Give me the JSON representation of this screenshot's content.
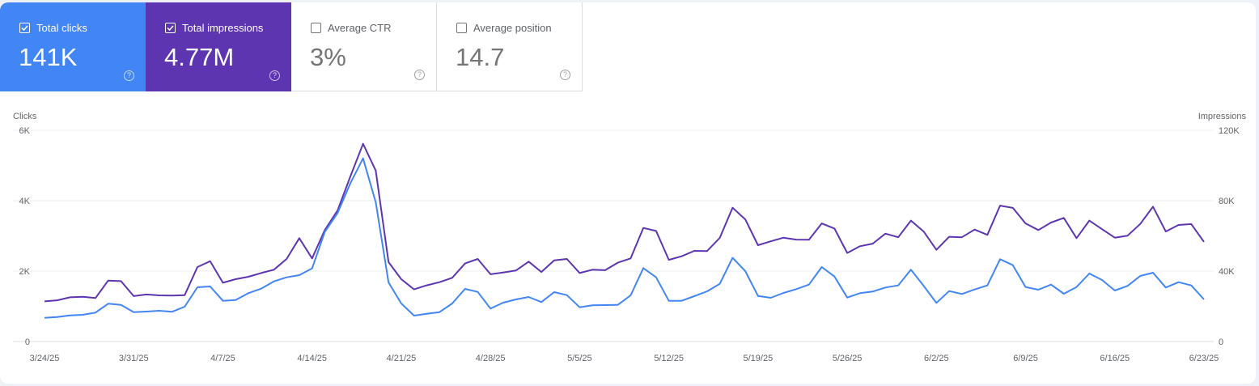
{
  "metrics": [
    {
      "label": "Total clicks",
      "value": "141K",
      "checked": true,
      "color": "#4285f4"
    },
    {
      "label": "Total impressions",
      "value": "4.77M",
      "checked": true,
      "color": "#5e35b1"
    },
    {
      "label": "Average CTR",
      "value": "3%",
      "checked": false
    },
    {
      "label": "Average position",
      "value": "14.7",
      "checked": false
    }
  ],
  "help_glyph": "?",
  "chart_data": {
    "type": "line",
    "grid": true,
    "left_axis": {
      "label": "Clicks",
      "ticks": [
        "0",
        "2K",
        "4K",
        "6K"
      ],
      "range": [
        0,
        6000
      ]
    },
    "right_axis": {
      "label": "Impressions",
      "ticks": [
        "0",
        "40K",
        "80K",
        "120K"
      ],
      "range": [
        0,
        120000
      ]
    },
    "x_tick_labels": [
      "3/24/25",
      "3/31/25",
      "4/7/25",
      "4/14/25",
      "4/21/25",
      "4/28/25",
      "5/5/25",
      "5/12/25",
      "5/19/25",
      "5/26/25",
      "6/2/25",
      "6/9/25",
      "6/16/25",
      "6/23/25"
    ],
    "x": [
      "3/24/25",
      "3/25/25",
      "3/26/25",
      "3/27/25",
      "3/28/25",
      "3/29/25",
      "3/30/25",
      "3/31/25",
      "4/1/25",
      "4/2/25",
      "4/3/25",
      "4/4/25",
      "4/5/25",
      "4/6/25",
      "4/7/25",
      "4/8/25",
      "4/9/25",
      "4/10/25",
      "4/11/25",
      "4/12/25",
      "4/13/25",
      "4/14/25",
      "4/15/25",
      "4/16/25",
      "4/17/25",
      "4/18/25",
      "4/19/25",
      "4/20/25",
      "4/21/25",
      "4/22/25",
      "4/23/25",
      "4/24/25",
      "4/25/25",
      "4/26/25",
      "4/27/25",
      "4/28/25",
      "4/29/25",
      "4/30/25",
      "5/1/25",
      "5/2/25",
      "5/3/25",
      "5/4/25",
      "5/5/25",
      "5/6/25",
      "5/7/25",
      "5/8/25",
      "5/9/25",
      "5/10/25",
      "5/11/25",
      "5/12/25",
      "5/13/25",
      "5/14/25",
      "5/15/25",
      "5/16/25",
      "5/17/25",
      "5/18/25",
      "5/19/25",
      "5/20/25",
      "5/21/25",
      "5/22/25",
      "5/23/25",
      "5/24/25",
      "5/25/25",
      "5/26/25",
      "5/27/25",
      "5/28/25",
      "5/29/25",
      "5/30/25",
      "5/31/25",
      "6/1/25",
      "6/2/25",
      "6/3/25",
      "6/4/25",
      "6/5/25",
      "6/6/25",
      "6/7/25",
      "6/8/25",
      "6/9/25",
      "6/10/25",
      "6/11/25",
      "6/12/25",
      "6/13/25",
      "6/14/25",
      "6/15/25",
      "6/16/25",
      "6/17/25",
      "6/18/25",
      "6/19/25",
      "6/20/25",
      "6/21/25",
      "6/22/25",
      "6/23/25"
    ],
    "series": [
      {
        "name": "Clicks",
        "axis": "left",
        "color": "#4285f4",
        "values": [
          674,
          697,
          743,
          759,
          821,
          1074,
          1042,
          835,
          851,
          874,
          844,
          989,
          1540,
          1563,
          1157,
          1180,
          1372,
          1501,
          1708,
          1823,
          1885,
          2076,
          3111,
          3648,
          4490,
          5203,
          3954,
          1678,
          1081,
          736,
          789,
          835,
          1081,
          1494,
          1410,
          935,
          1104,
          1196,
          1264,
          1119,
          1402,
          1318,
          973,
          1027,
          1035,
          1042,
          1310,
          2085,
          1823,
          1157,
          1157,
          1287,
          1425,
          1640,
          2376,
          2000,
          1295,
          1241,
          1379,
          1487,
          1617,
          2115,
          1847,
          1249,
          1372,
          1418,
          1533,
          1594,
          2038,
          1579,
          1096,
          1433,
          1349,
          1479,
          1594,
          2337,
          2168,
          1548,
          1471,
          1617,
          1356,
          1548,
          1931,
          1747,
          1448,
          1579,
          1862,
          1954,
          1533,
          1686,
          1594,
          1196
        ]
      },
      {
        "name": "Impressions",
        "axis": "right",
        "color": "#5e35b1",
        "values": [
          22800,
          23400,
          25100,
          25400,
          24700,
          34600,
          34300,
          25800,
          26700,
          26200,
          26100,
          26300,
          42300,
          45600,
          33400,
          35400,
          36800,
          38900,
          40800,
          46900,
          58700,
          47200,
          63300,
          74500,
          93600,
          112300,
          97100,
          45100,
          35400,
          29600,
          31900,
          33700,
          36200,
          44300,
          46900,
          38200,
          39200,
          40300,
          45400,
          39500,
          46100,
          46900,
          38900,
          40800,
          40500,
          44800,
          47200,
          64500,
          62800,
          46400,
          48400,
          51500,
          51400,
          58900,
          76000,
          69400,
          54700,
          56900,
          59000,
          57900,
          57800,
          67100,
          64200,
          50300,
          54100,
          55600,
          61300,
          59200,
          68700,
          62500,
          52100,
          59500,
          59200,
          63600,
          60600,
          77200,
          75900,
          67100,
          63300,
          67600,
          70200,
          58700,
          68700,
          63800,
          59000,
          60100,
          66800,
          76600,
          62500,
          66200,
          66700,
          56600
        ]
      }
    ]
  }
}
